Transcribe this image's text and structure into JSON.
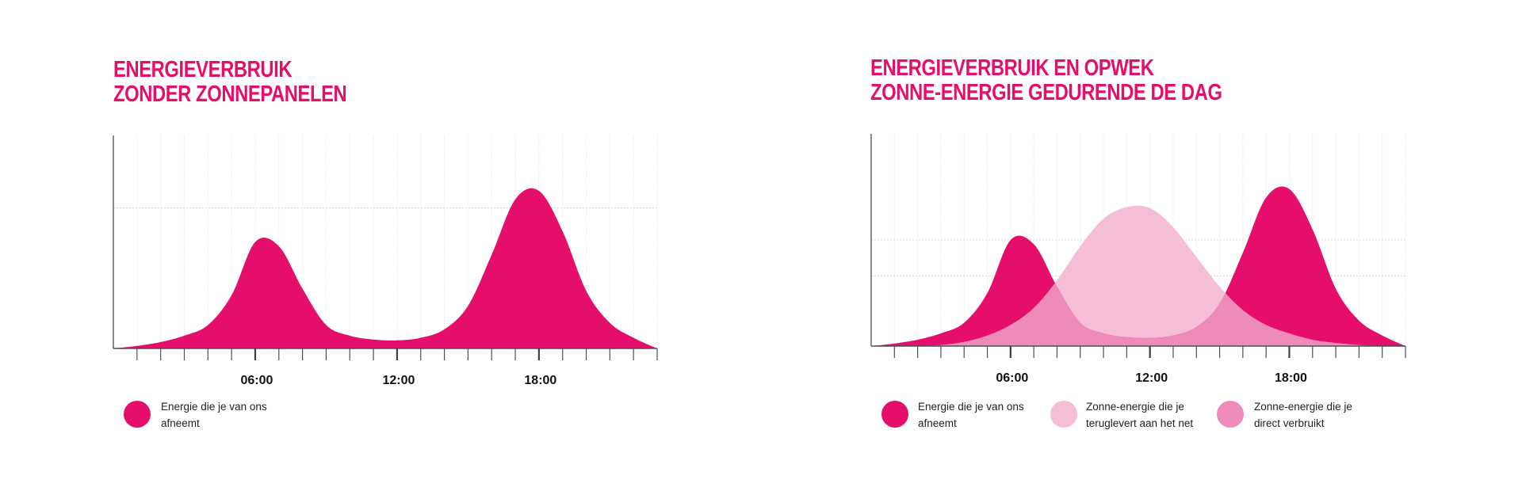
{
  "colors": {
    "consumption": "#E50E6A",
    "solar_returned": "#F5BDD6",
    "solar_direct": "#EF8BB8",
    "axis": "#4a4f57",
    "grid": "#d8d8d8",
    "title": "#E50E6A"
  },
  "chart_data": [
    {
      "type": "area",
      "title": "Energieverbruik zonder zonnepanelen",
      "title_lines": [
        "ENERGIEVERBRUIK",
        "ZONDER ZONNEPANELEN"
      ],
      "xlabel": "",
      "ylabel": "",
      "x_unit": "hour of day",
      "xlim": [
        0,
        23
      ],
      "ylim": [
        0,
        100
      ],
      "y_tick_labels": [],
      "y_gridlines": [
        66
      ],
      "grid": true,
      "x_ticks": [
        0,
        1,
        2,
        3,
        4,
        5,
        6,
        7,
        8,
        9,
        10,
        11,
        12,
        13,
        14,
        15,
        16,
        17,
        18,
        19,
        20,
        21,
        22,
        23
      ],
      "x_tick_labels": [
        {
          "x": 6,
          "label": "06:00"
        },
        {
          "x": 12,
          "label": "12:00"
        },
        {
          "x": 18,
          "label": "18:00"
        }
      ],
      "x": [
        0,
        1,
        2,
        3,
        4,
        5,
        6,
        7,
        8,
        9,
        10,
        11,
        12,
        13,
        14,
        15,
        16,
        17,
        18,
        19,
        20,
        21,
        22,
        23
      ],
      "series": [
        {
          "name": "Energie die je van ons afneemt",
          "key": "consumption",
          "values": [
            0,
            1.2,
            3,
            6,
            11,
            25,
            50,
            48,
            28,
            11,
            6,
            4.2,
            3.8,
            5,
            9,
            20,
            44,
            70,
            74,
            55,
            27,
            12,
            5,
            0
          ]
        }
      ],
      "legend": [
        {
          "label_lines": [
            "Energie die je van ons",
            "afneemt"
          ],
          "key": "consumption"
        }
      ],
      "legend_position": "bottom-left"
    },
    {
      "type": "area",
      "title": "Energieverbruik en opwek zonne-energie gedurende de dag",
      "title_lines": [
        "ENERGIEVERBRUIK EN OPWEK",
        "ZONNE-ENERGIE GEDURENDE DE DAG"
      ],
      "xlabel": "",
      "ylabel": "",
      "x_unit": "hour of day",
      "xlim": [
        0,
        23
      ],
      "ylim": [
        0,
        100
      ],
      "y_tick_labels": [],
      "y_gridlines": [
        33,
        50
      ],
      "grid": true,
      "x_ticks": [
        0,
        1,
        2,
        3,
        4,
        5,
        6,
        7,
        8,
        9,
        10,
        11,
        12,
        13,
        14,
        15,
        16,
        17,
        18,
        19,
        20,
        21,
        22,
        23
      ],
      "x_tick_labels": [
        {
          "x": 6,
          "label": "06:00"
        },
        {
          "x": 12,
          "label": "12:00"
        },
        {
          "x": 18,
          "label": "18:00"
        }
      ],
      "x": [
        0,
        1,
        2,
        3,
        4,
        5,
        6,
        7,
        8,
        9,
        10,
        11,
        12,
        13,
        14,
        15,
        16,
        17,
        18,
        19,
        20,
        21,
        22,
        23
      ],
      "series": [
        {
          "name": "Energie die je van ons afneemt",
          "key": "consumption",
          "values": [
            0,
            1.2,
            3,
            6,
            11,
            25,
            50,
            48,
            28,
            11,
            6,
            4.2,
            3.8,
            5,
            9,
            20,
            44,
            70,
            74,
            55,
            27,
            12,
            5,
            0
          ]
        },
        {
          "name": "Zonne-energie opwek",
          "key": "solar",
          "values": [
            0,
            0,
            0,
            0.5,
            2,
            5,
            10,
            18,
            31,
            47,
            60,
            65.5,
            65,
            56,
            42,
            28,
            17,
            10,
            6,
            3,
            1.5,
            0.5,
            0,
            0
          ]
        }
      ],
      "derived_areas": [
        {
          "name": "Zonne-energie die je teruglevert aan het net",
          "key": "solar_returned",
          "rule": "solar above consumption"
        },
        {
          "name": "Zonne-energie die je direct verbruikt",
          "key": "solar_direct",
          "rule": "min(solar, consumption)"
        }
      ],
      "legend": [
        {
          "label_lines": [
            "Energie die je van ons",
            "afneemt"
          ],
          "key": "consumption"
        },
        {
          "label_lines": [
            "Zonne-energie die je",
            "teruglevert aan het net"
          ],
          "key": "solar_returned"
        },
        {
          "label_lines": [
            "Zonne-energie die je",
            "direct verbruikt"
          ],
          "key": "solar_direct"
        }
      ],
      "legend_position": "bottom-left"
    }
  ]
}
